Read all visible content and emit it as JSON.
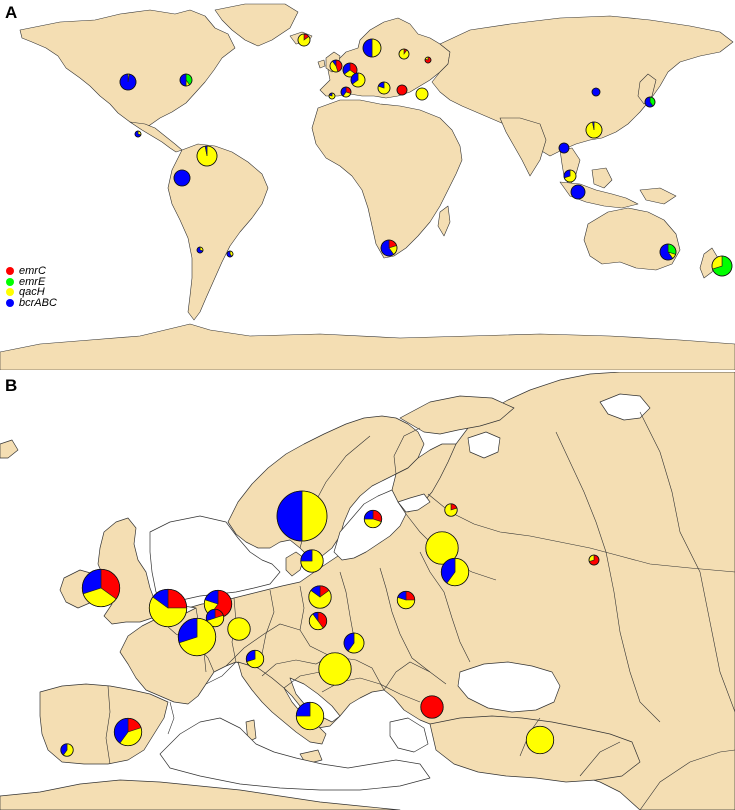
{
  "panels": {
    "a": {
      "label": "A"
    },
    "b": {
      "label": "B"
    }
  },
  "legend": [
    {
      "gene": "emrC",
      "color": "#ff0000"
    },
    {
      "gene": "emrE",
      "color": "#00ff00"
    },
    {
      "gene": "qacH",
      "color": "#ffff00"
    },
    {
      "gene": "bcrABC",
      "color": "#0000ff"
    }
  ],
  "colors": {
    "land": "#f4deb3",
    "border": "#333333",
    "sea": "#ffffff"
  },
  "map_a_points": [
    {
      "name": "Iceland",
      "size": 0.6,
      "f": [
        0.15,
        0,
        0.85,
        0
      ]
    },
    {
      "name": "Ireland",
      "size": 0.6,
      "f": [
        0.45,
        0,
        0.45,
        0.1
      ]
    },
    {
      "name": "UK",
      "size": 0.7,
      "f": [
        0.35,
        0,
        0.3,
        0.35
      ]
    },
    {
      "name": "Norway-Sweden",
      "size": 0.9,
      "f": [
        0,
        0,
        0.5,
        0.5
      ]
    },
    {
      "name": "Finland",
      "size": 0.5,
      "f": [
        0.1,
        0,
        0.9,
        0
      ]
    },
    {
      "name": "Russia",
      "size": 0.3,
      "f": [
        0.8,
        0,
        0.2,
        0
      ]
    },
    {
      "name": "USA",
      "size": 0.8,
      "f": [
        0,
        0,
        0.03,
        0.97
      ]
    },
    {
      "name": "Canada-East",
      "size": 0.6,
      "f": [
        0,
        0.4,
        0.1,
        0.5
      ]
    },
    {
      "name": "Mexico",
      "size": 0.3,
      "f": [
        0,
        0,
        0.3,
        0.7
      ]
    },
    {
      "name": "Colombia",
      "size": 1.0,
      "f": [
        0,
        0,
        0.97,
        0.03
      ]
    },
    {
      "name": "Ecuador",
      "size": 0.8,
      "f": [
        0,
        0,
        0,
        1
      ]
    },
    {
      "name": "Chile",
      "size": 0.3,
      "f": [
        0,
        0,
        0.3,
        0.7
      ]
    },
    {
      "name": "Argentina",
      "size": 0.3,
      "f": [
        0,
        0,
        0.4,
        0.6
      ]
    },
    {
      "name": "South Africa",
      "size": 0.8,
      "f": [
        0.2,
        0,
        0.2,
        0.6
      ]
    },
    {
      "name": "China-Hong Kong",
      "size": 0.8,
      "f": [
        0,
        0,
        0.97,
        0.03
      ]
    },
    {
      "name": "China-North",
      "size": 0.4,
      "f": [
        0,
        0,
        0,
        1
      ]
    },
    {
      "name": "Japan",
      "size": 0.5,
      "f": [
        0,
        0.4,
        0,
        0.6
      ]
    },
    {
      "name": "Vietnam",
      "size": 0.5,
      "f": [
        0,
        0,
        0,
        1
      ]
    },
    {
      "name": "Malaysia",
      "size": 0.6,
      "f": [
        0,
        0,
        0.7,
        0.3
      ]
    },
    {
      "name": "Indonesia",
      "size": 0.7,
      "f": [
        0,
        0,
        0,
        1
      ]
    },
    {
      "name": "Australia",
      "size": 0.8,
      "f": [
        0,
        0.3,
        0.1,
        0.6
      ]
    },
    {
      "name": "New Zealand",
      "size": 1.0,
      "f": [
        0,
        0.7,
        0.3,
        0
      ]
    },
    {
      "name": "Spain",
      "size": 0.5,
      "f": [
        0.3,
        0,
        0.3,
        0.4
      ]
    },
    {
      "name": "Portugal",
      "size": 0.3,
      "f": [
        0,
        0,
        0.8,
        0.2
      ]
    },
    {
      "name": "France",
      "size": 0.7,
      "f": [
        0,
        0,
        0.65,
        0.35
      ]
    },
    {
      "name": "Italy",
      "size": 0.6,
      "f": [
        0,
        0,
        0.8,
        0.2
      ]
    },
    {
      "name": "Greece-Bulgaria",
      "size": 0.5,
      "f": [
        1,
        0,
        0,
        0
      ]
    },
    {
      "name": "Turkey",
      "size": 0.6,
      "f": [
        0,
        0,
        1,
        0
      ]
    }
  ],
  "map_b_points": [
    {
      "name": "Norway-Sweden",
      "size": 1.0,
      "f": [
        0,
        0,
        0.5,
        0.5
      ]
    },
    {
      "name": "Sweden-South",
      "size": 0.45,
      "f": [
        0,
        0,
        0.75,
        0.25
      ]
    },
    {
      "name": "Latvia",
      "size": 0.35,
      "f": [
        0.3,
        0,
        0.45,
        0.25
      ]
    },
    {
      "name": "Estonia",
      "size": 0.25,
      "f": [
        0.2,
        0,
        0.8,
        0
      ]
    },
    {
      "name": "Lithuania",
      "size": 0.65,
      "f": [
        0,
        0,
        1,
        0
      ]
    },
    {
      "name": "Belarus",
      "size": 0.55,
      "f": [
        0,
        0,
        0.6,
        0.4
      ]
    },
    {
      "name": "Russia",
      "size": 0.2,
      "f": [
        0.7,
        0,
        0.3,
        0
      ]
    },
    {
      "name": "Ireland",
      "size": 0.75,
      "f": [
        0.35,
        0,
        0.35,
        0.3
      ]
    },
    {
      "name": "England",
      "size": 0.75,
      "f": [
        0.25,
        0,
        0.6,
        0.15
      ]
    },
    {
      "name": "Netherlands",
      "size": 0.55,
      "f": [
        0.6,
        0,
        0.2,
        0.2
      ]
    },
    {
      "name": "Belgium",
      "size": 0.35,
      "f": [
        0.2,
        0,
        0.5,
        0.3
      ]
    },
    {
      "name": "France-North",
      "size": 0.75,
      "f": [
        0,
        0,
        0.7,
        0.3
      ]
    },
    {
      "name": "Luxembourg",
      "size": 0.45,
      "f": [
        0,
        0,
        1,
        0
      ]
    },
    {
      "name": "Switzerland",
      "size": 0.35,
      "f": [
        0,
        0,
        0.7,
        0.3
      ]
    },
    {
      "name": "Germany-North",
      "size": 0.45,
      "f": [
        0.15,
        0,
        0.7,
        0.15
      ]
    },
    {
      "name": "Germany-Central",
      "size": 0.35,
      "f": [
        0.4,
        0,
        0.5,
        0.1
      ]
    },
    {
      "name": "Poland",
      "size": 0.35,
      "f": [
        0.25,
        0,
        0.55,
        0.2
      ]
    },
    {
      "name": "Austria",
      "size": 0.4,
      "f": [
        0,
        0,
        0.6,
        0.4
      ]
    },
    {
      "name": "Italy-North",
      "size": 0.65,
      "f": [
        0,
        0,
        1,
        0
      ]
    },
    {
      "name": "Italy-Central",
      "size": 0.55,
      "f": [
        0,
        0,
        0.75,
        0.25
      ]
    },
    {
      "name": "Bulgaria",
      "size": 0.45,
      "f": [
        1,
        0,
        0,
        0
      ]
    },
    {
      "name": "Turkey",
      "size": 0.55,
      "f": [
        0,
        0,
        1,
        0
      ]
    },
    {
      "name": "Spain",
      "size": 0.55,
      "f": [
        0.2,
        0,
        0.4,
        0.4
      ]
    },
    {
      "name": "Portugal",
      "size": 0.25,
      "f": [
        0,
        0,
        0.6,
        0.4
      ]
    }
  ]
}
